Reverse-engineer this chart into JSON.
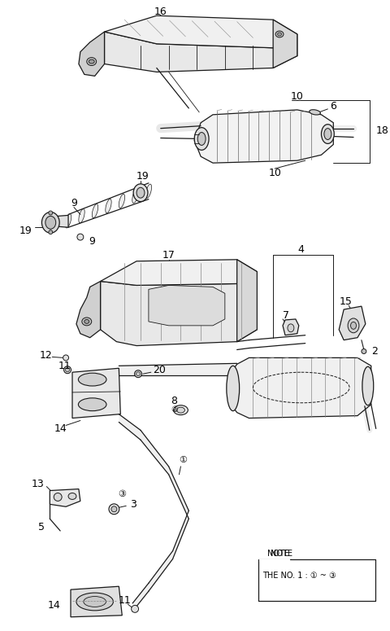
{
  "bg_color": "#ffffff",
  "line_color": "#000000",
  "note_text1": "NOTE",
  "note_text2": "THE NO. 1 : ① ~ ③"
}
